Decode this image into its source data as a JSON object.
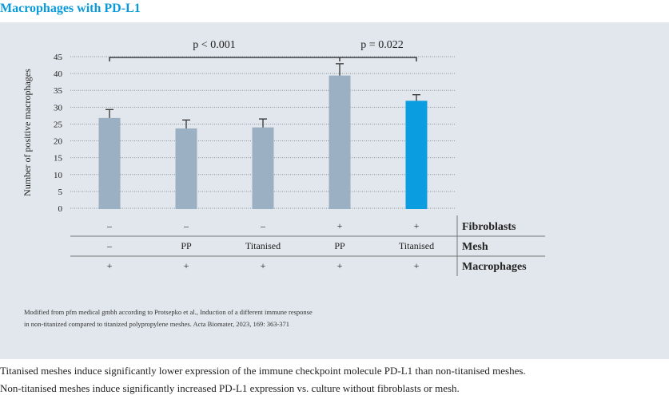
{
  "title": "Macrophages with PD-L1",
  "chart_data": {
    "type": "bar",
    "ylabel": "Number of positive macrophages",
    "ylim": [
      0,
      45
    ],
    "yticks": [
      0,
      5,
      10,
      15,
      20,
      25,
      30,
      35,
      40,
      45
    ],
    "grid": true,
    "values": [
      26.8,
      23.7,
      24.0,
      39.4,
      31.9
    ],
    "error_upper": [
      29.3,
      26.2,
      26.5,
      42.9,
      33.7
    ],
    "highlight_index": 4,
    "significance": [
      {
        "label": "p < 0.001",
        "from": 0,
        "to": 3
      },
      {
        "label": "p = 0.022",
        "from": 3,
        "to": 4
      }
    ],
    "conditions": [
      {
        "label": "Fibroblasts",
        "values": [
          "–",
          "–",
          "–",
          "+",
          "+"
        ]
      },
      {
        "label": "Mesh",
        "values": [
          "–",
          "PP",
          "Titanised",
          "PP",
          "Titanised"
        ]
      },
      {
        "label": "Macrophages",
        "values": [
          "+",
          "+",
          "+",
          "+",
          "+"
        ]
      }
    ]
  },
  "colors": {
    "bar": "#9bb1c3",
    "highlight": "#0a9ee0",
    "panel": "#e1e7ec",
    "title": "#0a9ad9"
  },
  "footnote": [
    "Modified from pfm medical gmbh according to Protsepko et al., Induction of a different immune response",
    "in non-titanized compared to titanized polypropylene meshes. Acta Biomater, 2023, 169: 363-371"
  ],
  "caption": [
    "Titanised meshes induce significantly lower expression of the immune checkpoint molecule PD-L1 than non-titanised meshes.",
    "Non-titanised meshes induce significantly increased PD-L1 expression vs. culture without fibroblasts or mesh."
  ]
}
